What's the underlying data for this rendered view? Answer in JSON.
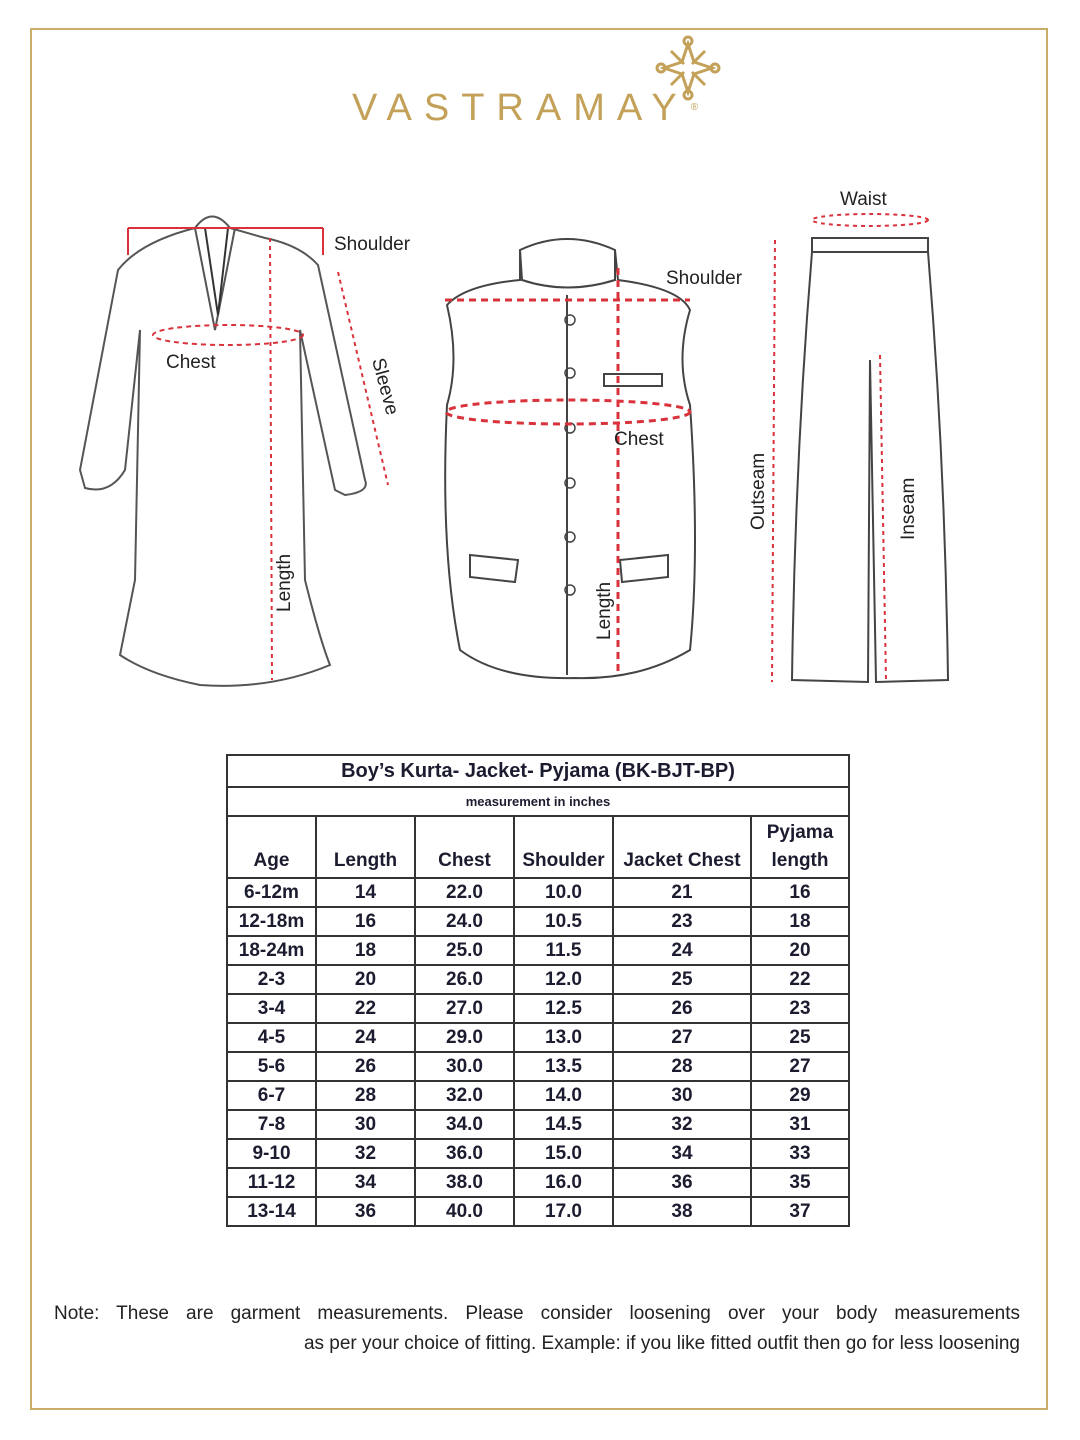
{
  "brand": {
    "name": "VASTRAMAY",
    "registered": "®",
    "color": "#c4a158"
  },
  "diagram": {
    "kurta": {
      "shoulder": "Shoulder",
      "chest": "Chest",
      "sleeve": "Sleeve",
      "length": "Length"
    },
    "jacket": {
      "shoulder": "Shoulder",
      "chest": "Chest",
      "length": "Length"
    },
    "pyjama": {
      "waist": "Waist",
      "outseam": "Outseam",
      "inseam": "Inseam"
    },
    "measure_line_color": "#d9323a"
  },
  "table": {
    "title": "Boy’s Kurta- Jacket- Pyjama (BK-BJT-BP)",
    "subtitle": "measurement in inches",
    "headers": [
      "Age",
      "Length",
      "Chest",
      "Shoulder",
      "Jacket  Chest",
      "Pyjama length"
    ],
    "rows": [
      [
        "6-12m",
        "14",
        "22.0",
        "10.0",
        "21",
        "16"
      ],
      [
        "12-18m",
        "16",
        "24.0",
        "10.5",
        "23",
        "18"
      ],
      [
        "18-24m",
        "18",
        "25.0",
        "11.5",
        "24",
        "20"
      ],
      [
        "2-3",
        "20",
        "26.0",
        "12.0",
        "25",
        "22"
      ],
      [
        "3-4",
        "22",
        "27.0",
        "12.5",
        "26",
        "23"
      ],
      [
        "4-5",
        "24",
        "29.0",
        "13.0",
        "27",
        "25"
      ],
      [
        "5-6",
        "26",
        "30.0",
        "13.5",
        "28",
        "27"
      ],
      [
        "6-7",
        "28",
        "32.0",
        "14.0",
        "30",
        "29"
      ],
      [
        "7-8",
        "30",
        "34.0",
        "14.5",
        "32",
        "31"
      ],
      [
        "9-10",
        "32",
        "36.0",
        "15.0",
        "34",
        "33"
      ],
      [
        "11-12",
        "34",
        "38.0",
        "16.0",
        "36",
        "35"
      ],
      [
        "13-14",
        "36",
        "40.0",
        "17.0",
        "38",
        "37"
      ]
    ]
  },
  "note": {
    "line1": "Note: These are garment measurements. Please consider loosening over your body measurements",
    "line2": "as per your choice of fitting. Example: if you like fitted outfit then go for less loosening"
  }
}
